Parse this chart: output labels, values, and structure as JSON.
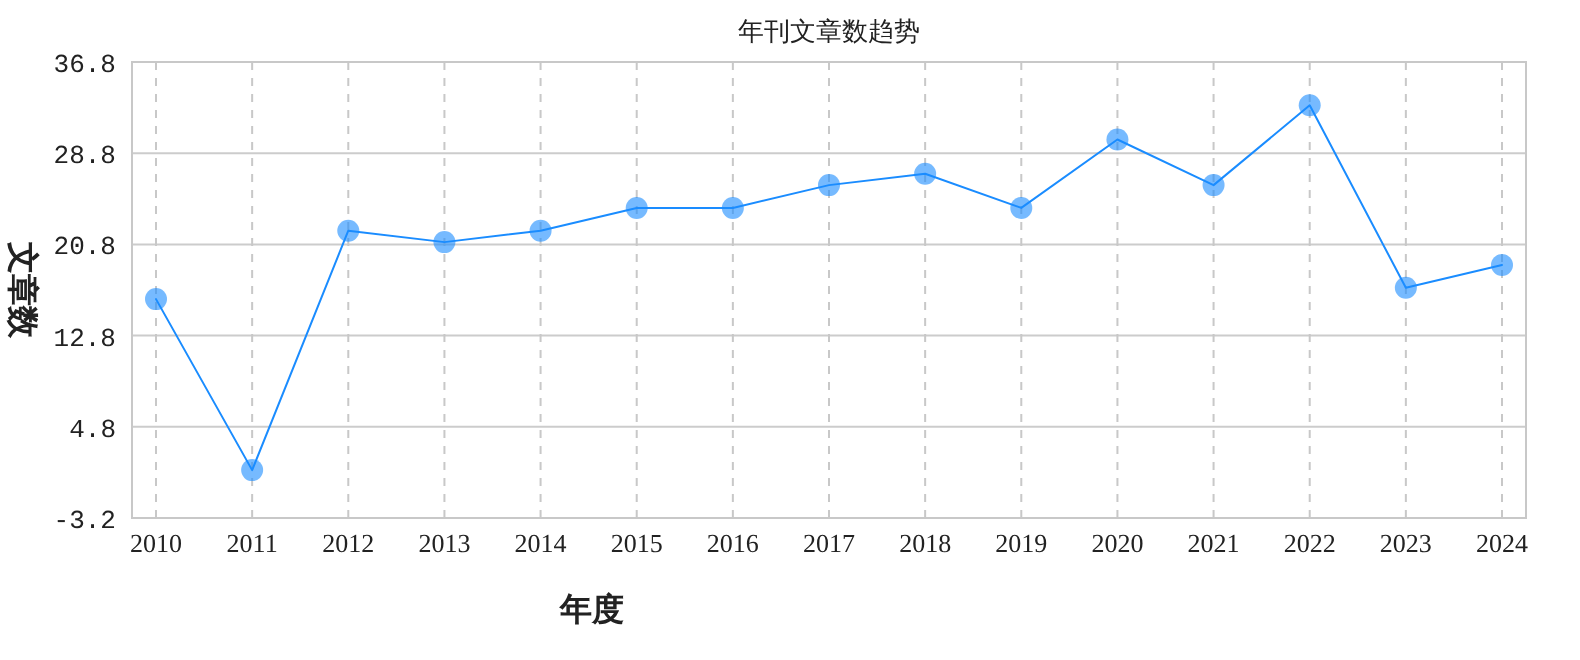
{
  "chart_data": {
    "type": "line",
    "title": "年刊文章数趋势",
    "xlabel": "年度",
    "ylabel": "文章数",
    "categories": [
      "2010",
      "2011",
      "2012",
      "2013",
      "2014",
      "2015",
      "2016",
      "2017",
      "2018",
      "2019",
      "2020",
      "2021",
      "2022",
      "2023",
      "2024"
    ],
    "series": [
      {
        "color": "#1a8cff",
        "values": [
          16,
          1,
          22,
          21,
          22,
          24,
          24,
          26,
          27,
          24,
          30,
          26,
          33,
          17,
          19
        ]
      }
    ],
    "ylim": [
      -3.2,
      36.8
    ],
    "yticks": [
      -3.2,
      4.8,
      12.8,
      20.8,
      28.8,
      36.8
    ],
    "grid": true,
    "marker": "circle",
    "line_style": "solid"
  }
}
